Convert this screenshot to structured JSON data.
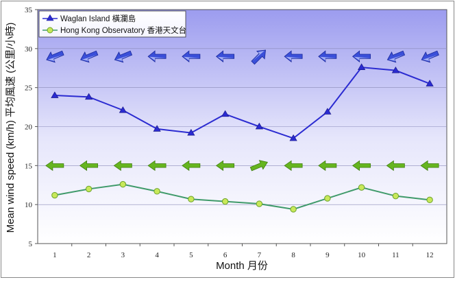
{
  "chart_data": {
    "type": "line",
    "categories": [
      "1",
      "2",
      "3",
      "4",
      "5",
      "6",
      "7",
      "8",
      "9",
      "10",
      "11",
      "12"
    ],
    "xlabel": "Month 月份",
    "ylabel": "Mean wind speed (km/h) 平均風速 (公里/小時)",
    "ylim": [
      5,
      35
    ],
    "yticks": [
      "5",
      "10",
      "15",
      "20",
      "25",
      "30",
      "35"
    ],
    "legend_position": "top-left",
    "series": [
      {
        "name": "Waglan Island 橫瀾島",
        "color": "#2b2bd1",
        "marker": "triangle",
        "values": [
          24.0,
          23.8,
          22.1,
          19.7,
          19.2,
          21.6,
          20.0,
          18.5,
          21.9,
          27.6,
          27.2,
          25.5
        ],
        "direction_arrows": {
          "y": 29,
          "color": "#3a4fd9",
          "directions": [
            "ENE",
            "ENE",
            "ENE",
            "E",
            "E",
            "E",
            "SW",
            "E",
            "E",
            "E",
            "ENE",
            "ENE"
          ]
        }
      },
      {
        "name": "Hong Kong Observatory 香港天文台",
        "color": "#3f9a6a",
        "marker": "circle",
        "values": [
          11.2,
          12.0,
          12.6,
          11.7,
          10.7,
          10.4,
          10.1,
          9.4,
          10.8,
          12.2,
          11.1,
          10.6
        ],
        "direction_arrows": {
          "y": 15,
          "color": "#66b51f",
          "directions": [
            "E",
            "E",
            "E",
            "E",
            "E",
            "E",
            "WSW",
            "E",
            "E",
            "E",
            "E",
            "E"
          ]
        }
      }
    ]
  }
}
